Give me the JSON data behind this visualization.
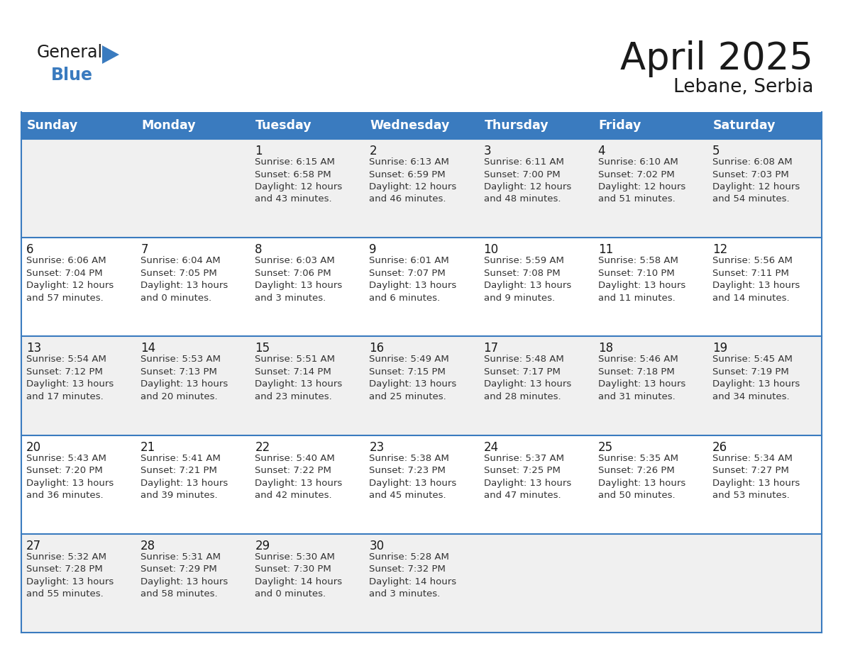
{
  "title": "April 2025",
  "subtitle": "Lebane, Serbia",
  "header_color": "#3a7bbf",
  "header_text_color": "#ffffff",
  "cell_bg_even": "#f0f0f0",
  "cell_bg_odd": "#ffffff",
  "border_color": "#3a7bbf",
  "text_color": "#333333",
  "day_names": [
    "Sunday",
    "Monday",
    "Tuesday",
    "Wednesday",
    "Thursday",
    "Friday",
    "Saturday"
  ],
  "weeks": [
    [
      {
        "day": "",
        "text": ""
      },
      {
        "day": "",
        "text": ""
      },
      {
        "day": "1",
        "text": "Sunrise: 6:15 AM\nSunset: 6:58 PM\nDaylight: 12 hours\nand 43 minutes."
      },
      {
        "day": "2",
        "text": "Sunrise: 6:13 AM\nSunset: 6:59 PM\nDaylight: 12 hours\nand 46 minutes."
      },
      {
        "day": "3",
        "text": "Sunrise: 6:11 AM\nSunset: 7:00 PM\nDaylight: 12 hours\nand 48 minutes."
      },
      {
        "day": "4",
        "text": "Sunrise: 6:10 AM\nSunset: 7:02 PM\nDaylight: 12 hours\nand 51 minutes."
      },
      {
        "day": "5",
        "text": "Sunrise: 6:08 AM\nSunset: 7:03 PM\nDaylight: 12 hours\nand 54 minutes."
      }
    ],
    [
      {
        "day": "6",
        "text": "Sunrise: 6:06 AM\nSunset: 7:04 PM\nDaylight: 12 hours\nand 57 minutes."
      },
      {
        "day": "7",
        "text": "Sunrise: 6:04 AM\nSunset: 7:05 PM\nDaylight: 13 hours\nand 0 minutes."
      },
      {
        "day": "8",
        "text": "Sunrise: 6:03 AM\nSunset: 7:06 PM\nDaylight: 13 hours\nand 3 minutes."
      },
      {
        "day": "9",
        "text": "Sunrise: 6:01 AM\nSunset: 7:07 PM\nDaylight: 13 hours\nand 6 minutes."
      },
      {
        "day": "10",
        "text": "Sunrise: 5:59 AM\nSunset: 7:08 PM\nDaylight: 13 hours\nand 9 minutes."
      },
      {
        "day": "11",
        "text": "Sunrise: 5:58 AM\nSunset: 7:10 PM\nDaylight: 13 hours\nand 11 minutes."
      },
      {
        "day": "12",
        "text": "Sunrise: 5:56 AM\nSunset: 7:11 PM\nDaylight: 13 hours\nand 14 minutes."
      }
    ],
    [
      {
        "day": "13",
        "text": "Sunrise: 5:54 AM\nSunset: 7:12 PM\nDaylight: 13 hours\nand 17 minutes."
      },
      {
        "day": "14",
        "text": "Sunrise: 5:53 AM\nSunset: 7:13 PM\nDaylight: 13 hours\nand 20 minutes."
      },
      {
        "day": "15",
        "text": "Sunrise: 5:51 AM\nSunset: 7:14 PM\nDaylight: 13 hours\nand 23 minutes."
      },
      {
        "day": "16",
        "text": "Sunrise: 5:49 AM\nSunset: 7:15 PM\nDaylight: 13 hours\nand 25 minutes."
      },
      {
        "day": "17",
        "text": "Sunrise: 5:48 AM\nSunset: 7:17 PM\nDaylight: 13 hours\nand 28 minutes."
      },
      {
        "day": "18",
        "text": "Sunrise: 5:46 AM\nSunset: 7:18 PM\nDaylight: 13 hours\nand 31 minutes."
      },
      {
        "day": "19",
        "text": "Sunrise: 5:45 AM\nSunset: 7:19 PM\nDaylight: 13 hours\nand 34 minutes."
      }
    ],
    [
      {
        "day": "20",
        "text": "Sunrise: 5:43 AM\nSunset: 7:20 PM\nDaylight: 13 hours\nand 36 minutes."
      },
      {
        "day": "21",
        "text": "Sunrise: 5:41 AM\nSunset: 7:21 PM\nDaylight: 13 hours\nand 39 minutes."
      },
      {
        "day": "22",
        "text": "Sunrise: 5:40 AM\nSunset: 7:22 PM\nDaylight: 13 hours\nand 42 minutes."
      },
      {
        "day": "23",
        "text": "Sunrise: 5:38 AM\nSunset: 7:23 PM\nDaylight: 13 hours\nand 45 minutes."
      },
      {
        "day": "24",
        "text": "Sunrise: 5:37 AM\nSunset: 7:25 PM\nDaylight: 13 hours\nand 47 minutes."
      },
      {
        "day": "25",
        "text": "Sunrise: 5:35 AM\nSunset: 7:26 PM\nDaylight: 13 hours\nand 50 minutes."
      },
      {
        "day": "26",
        "text": "Sunrise: 5:34 AM\nSunset: 7:27 PM\nDaylight: 13 hours\nand 53 minutes."
      }
    ],
    [
      {
        "day": "27",
        "text": "Sunrise: 5:32 AM\nSunset: 7:28 PM\nDaylight: 13 hours\nand 55 minutes."
      },
      {
        "day": "28",
        "text": "Sunrise: 5:31 AM\nSunset: 7:29 PM\nDaylight: 13 hours\nand 58 minutes."
      },
      {
        "day": "29",
        "text": "Sunrise: 5:30 AM\nSunset: 7:30 PM\nDaylight: 14 hours\nand 0 minutes."
      },
      {
        "day": "30",
        "text": "Sunrise: 5:28 AM\nSunset: 7:32 PM\nDaylight: 14 hours\nand 3 minutes."
      },
      {
        "day": "",
        "text": ""
      },
      {
        "day": "",
        "text": ""
      },
      {
        "day": "",
        "text": ""
      }
    ]
  ]
}
